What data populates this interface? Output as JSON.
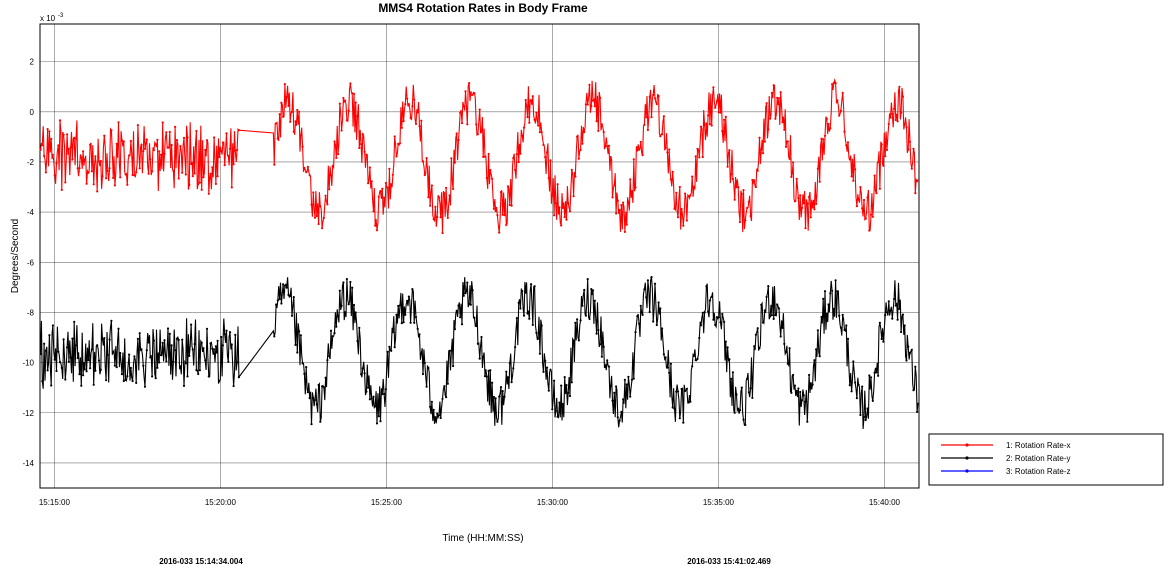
{
  "chart_data": {
    "type": "line",
    "title": "MMS4 Rotation Rates in Body Frame",
    "xlabel": "Time  (HH:MM:SS)",
    "ylabel": "Degrees/Second",
    "y_exponent_label": "x 10",
    "y_exponent_value": "-3",
    "xlim": [
      "15:14:34.004",
      "15:41:02.469"
    ],
    "ylim": [
      -15,
      3.5
    ],
    "x_ticks": [
      "15:15:00",
      "15:20:00",
      "15:25:00",
      "15:30:00",
      "15:35:00",
      "15:40:00"
    ],
    "y_ticks": [
      2,
      0,
      -2,
      -4,
      -6,
      -8,
      -10,
      -12,
      -14
    ],
    "grid": true,
    "legend_position": "bottom-right, outside plot",
    "start_time_label": "2016-033 15:14:34.004",
    "end_time_label": "2016-033 15:41:02.469",
    "gap": [
      "15:20:35",
      "15:21:35"
    ],
    "series": [
      {
        "name": "1:  Rotation Rate-x",
        "color": "#ff0000",
        "mean_before_gap": -1.8,
        "mean_after_gap": -1.8,
        "oscillation_amplitude": 2.2,
        "oscillation_period_s": 110,
        "min": -5.8,
        "max": 2.8
      },
      {
        "name": "2:  Rotation Rate-y",
        "color": "#000000",
        "mean_before_gap": -9.7,
        "mean_after_gap": -9.6,
        "oscillation_amplitude": 2.2,
        "oscillation_period_s": 110,
        "min": -14.0,
        "max": -5.8
      },
      {
        "name": "3:  Rotation Rate-z",
        "color": "#0000ff"
      }
    ]
  }
}
